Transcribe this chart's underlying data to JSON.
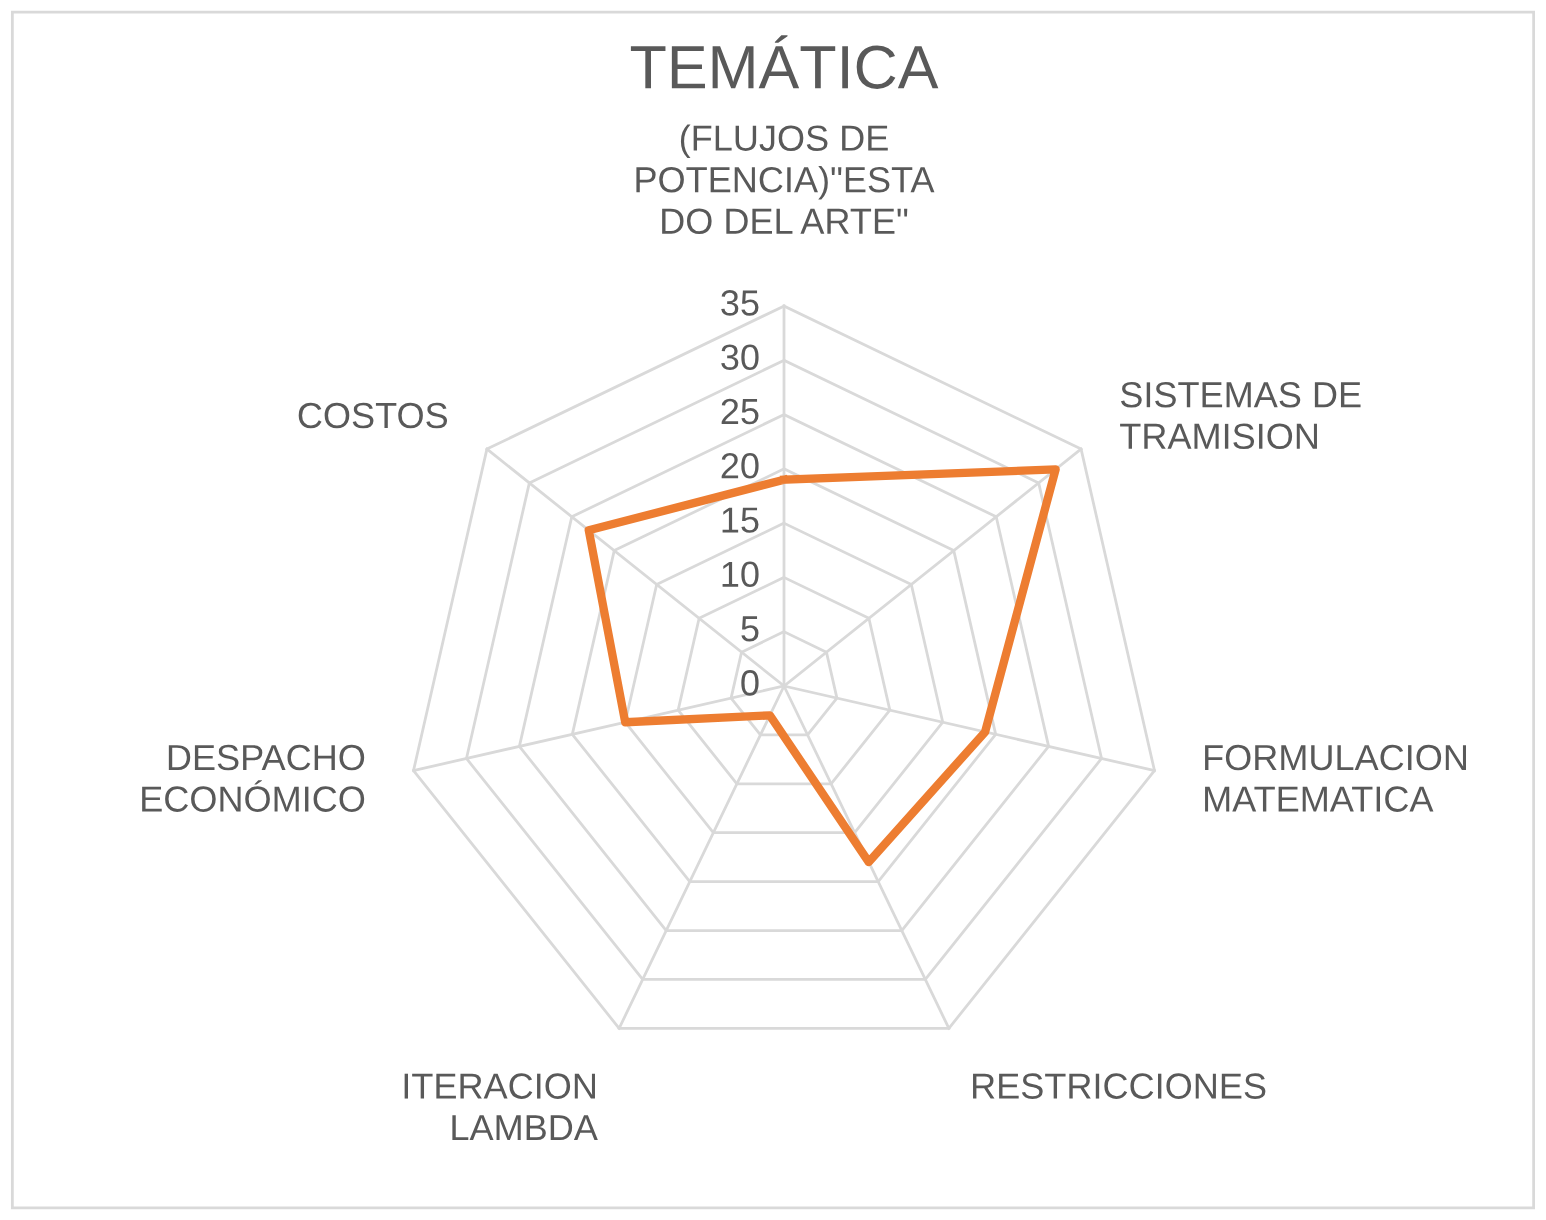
{
  "chart_data": {
    "type": "radar",
    "title": "TEMÁTICA",
    "categories": [
      "(FLUJOS DE\nPOTENCIA)\"ESTA\nDO DEL ARTE\"",
      "SISTEMAS DE\nTRAMISION",
      "FORMULACION\nMATEMATICA",
      "RESTRICCIONES",
      "ITERACION\nLAMBDA",
      "DESPACHO\nECONÓMICO",
      "COSTOS"
    ],
    "series": [
      {
        "color": "#ed7d31",
        "values": [
          19,
          32,
          19,
          18,
          3,
          15,
          23
        ]
      }
    ],
    "ylim": [
      0,
      35
    ],
    "yticks": [
      0,
      5,
      10,
      15,
      20,
      25,
      30,
      35
    ],
    "grid": true,
    "marker": "none",
    "line_style": "solid"
  }
}
